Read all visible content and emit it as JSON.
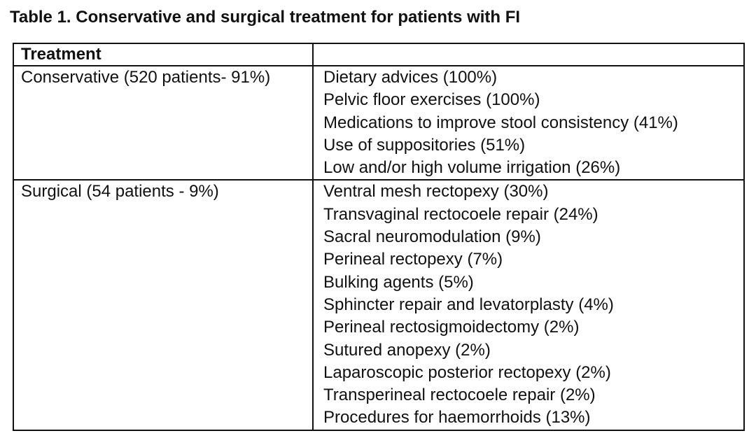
{
  "caption": "Table 1. Conservative and surgical treatment for patients with FI",
  "table": {
    "header": [
      "Treatment",
      ""
    ],
    "rows": [
      {
        "group": "Conservative (520 patients- 91%)",
        "items": [
          "Dietary advices (100%)",
          "Pelvic floor exercises (100%)",
          "Medications to improve stool consistency (41%)",
          "Use of suppositories (51%)",
          "Low and/or high volume irrigation (26%)"
        ]
      },
      {
        "group": "Surgical (54 patients - 9%)",
        "items": [
          "Ventral mesh rectopexy (30%)",
          "Transvaginal rectocoele repair (24%)",
          "Sacral neuromodulation (9%)",
          "Perineal rectopexy (7%)",
          "Bulking agents (5%)",
          "Sphincter repair and levatorplasty (4%)",
          "Perineal rectosigmoidectomy (2%)",
          "Sutured anopexy (2%)",
          "Laparoscopic posterior rectopexy (2%)",
          "Transperineal rectocoele repair (2%)",
          "Procedures for haemorrhoids (13%)"
        ]
      }
    ]
  }
}
